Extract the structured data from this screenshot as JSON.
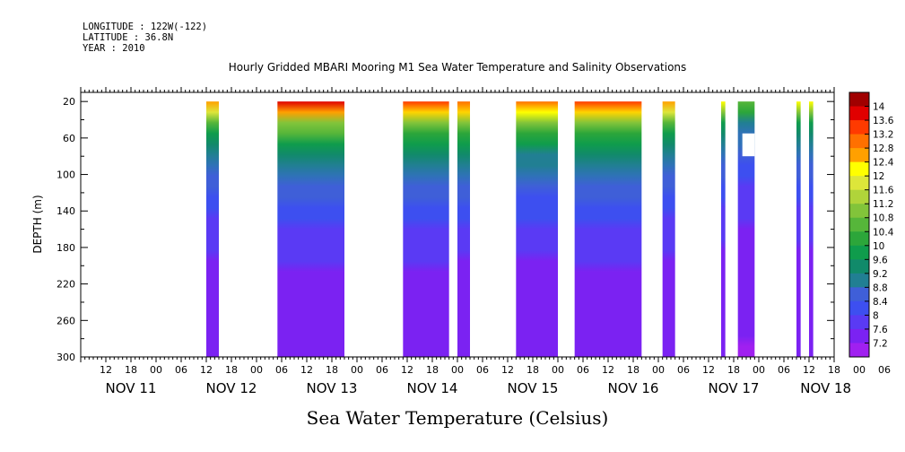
{
  "header": {
    "longitude_line": "LONGITUDE : 122W(-122)",
    "latitude_line": "LATITUDE : 36.8N",
    "year_line": "YEAR : 2010"
  },
  "chart_data": {
    "type": "heatmap",
    "title": "Hourly Gridded MBARI Mooring M1 Sea Water Temperature and Salinity Observations",
    "xlabel": "Sea Water Temperature (Celsius)",
    "ylabel": "DEPTH (m)",
    "x_hours_range": [
      0,
      180
    ],
    "x_hour_ticks": [
      "12",
      "18",
      "00",
      "06",
      "12",
      "18",
      "00",
      "06",
      "12",
      "18",
      "00",
      "06",
      "12",
      "18",
      "00",
      "06",
      "12",
      "18",
      "00",
      "06",
      "12",
      "18",
      "00",
      "06",
      "12",
      "18",
      "00",
      "06",
      "12",
      "18",
      "00",
      "06"
    ],
    "x_day_labels": [
      "NOV 11",
      "NOV 12",
      "NOV 13",
      "NOV 14",
      "NOV 15",
      "NOV 16",
      "NOV 17",
      "NOV 18"
    ],
    "ylim": [
      300,
      10
    ],
    "y_ticks": [
      20,
      60,
      100,
      140,
      180,
      220,
      260,
      300
    ],
    "colorbar": {
      "levels": [
        7.2,
        7.6,
        8,
        8.4,
        8.8,
        9.2,
        9.6,
        10,
        10.4,
        10.8,
        11.2,
        11.6,
        12,
        12.4,
        12.8,
        13.2,
        13.6,
        14
      ],
      "labels": [
        "14",
        "13.6",
        "13.2",
        "12.8",
        "12.4",
        "12",
        "11.6",
        "11.2",
        "10.8",
        "10.4",
        "10",
        "9.6",
        "9.2",
        "8.8",
        "8.4",
        "8",
        "7.6",
        "7.2"
      ]
    },
    "data_segments": [
      {
        "start_hour": 30,
        "end_hour": 33,
        "surface_temp": 12.6
      },
      {
        "start_hour": 47,
        "end_hour": 63,
        "surface_temp": 13.5
      },
      {
        "start_hour": 77,
        "end_hour": 88,
        "surface_temp": 13.2
      },
      {
        "start_hour": 90,
        "end_hour": 93,
        "surface_temp": 13.1
      },
      {
        "start_hour": 104,
        "end_hour": 114,
        "surface_temp": 13.0
      },
      {
        "start_hour": 118,
        "end_hour": 134,
        "surface_temp": 13.2
      },
      {
        "start_hour": 139,
        "end_hour": 142,
        "surface_temp": 12.6
      },
      {
        "start_hour": 153,
        "end_hour": 154,
        "surface_temp": 11.8
      },
      {
        "start_hour": 157,
        "end_hour": 161,
        "surface_temp": 10.6
      },
      {
        "start_hour": 171,
        "end_hour": 172,
        "surface_temp": 11.8
      },
      {
        "start_hour": 174,
        "end_hour": 175,
        "surface_temp": 11.8
      }
    ]
  }
}
